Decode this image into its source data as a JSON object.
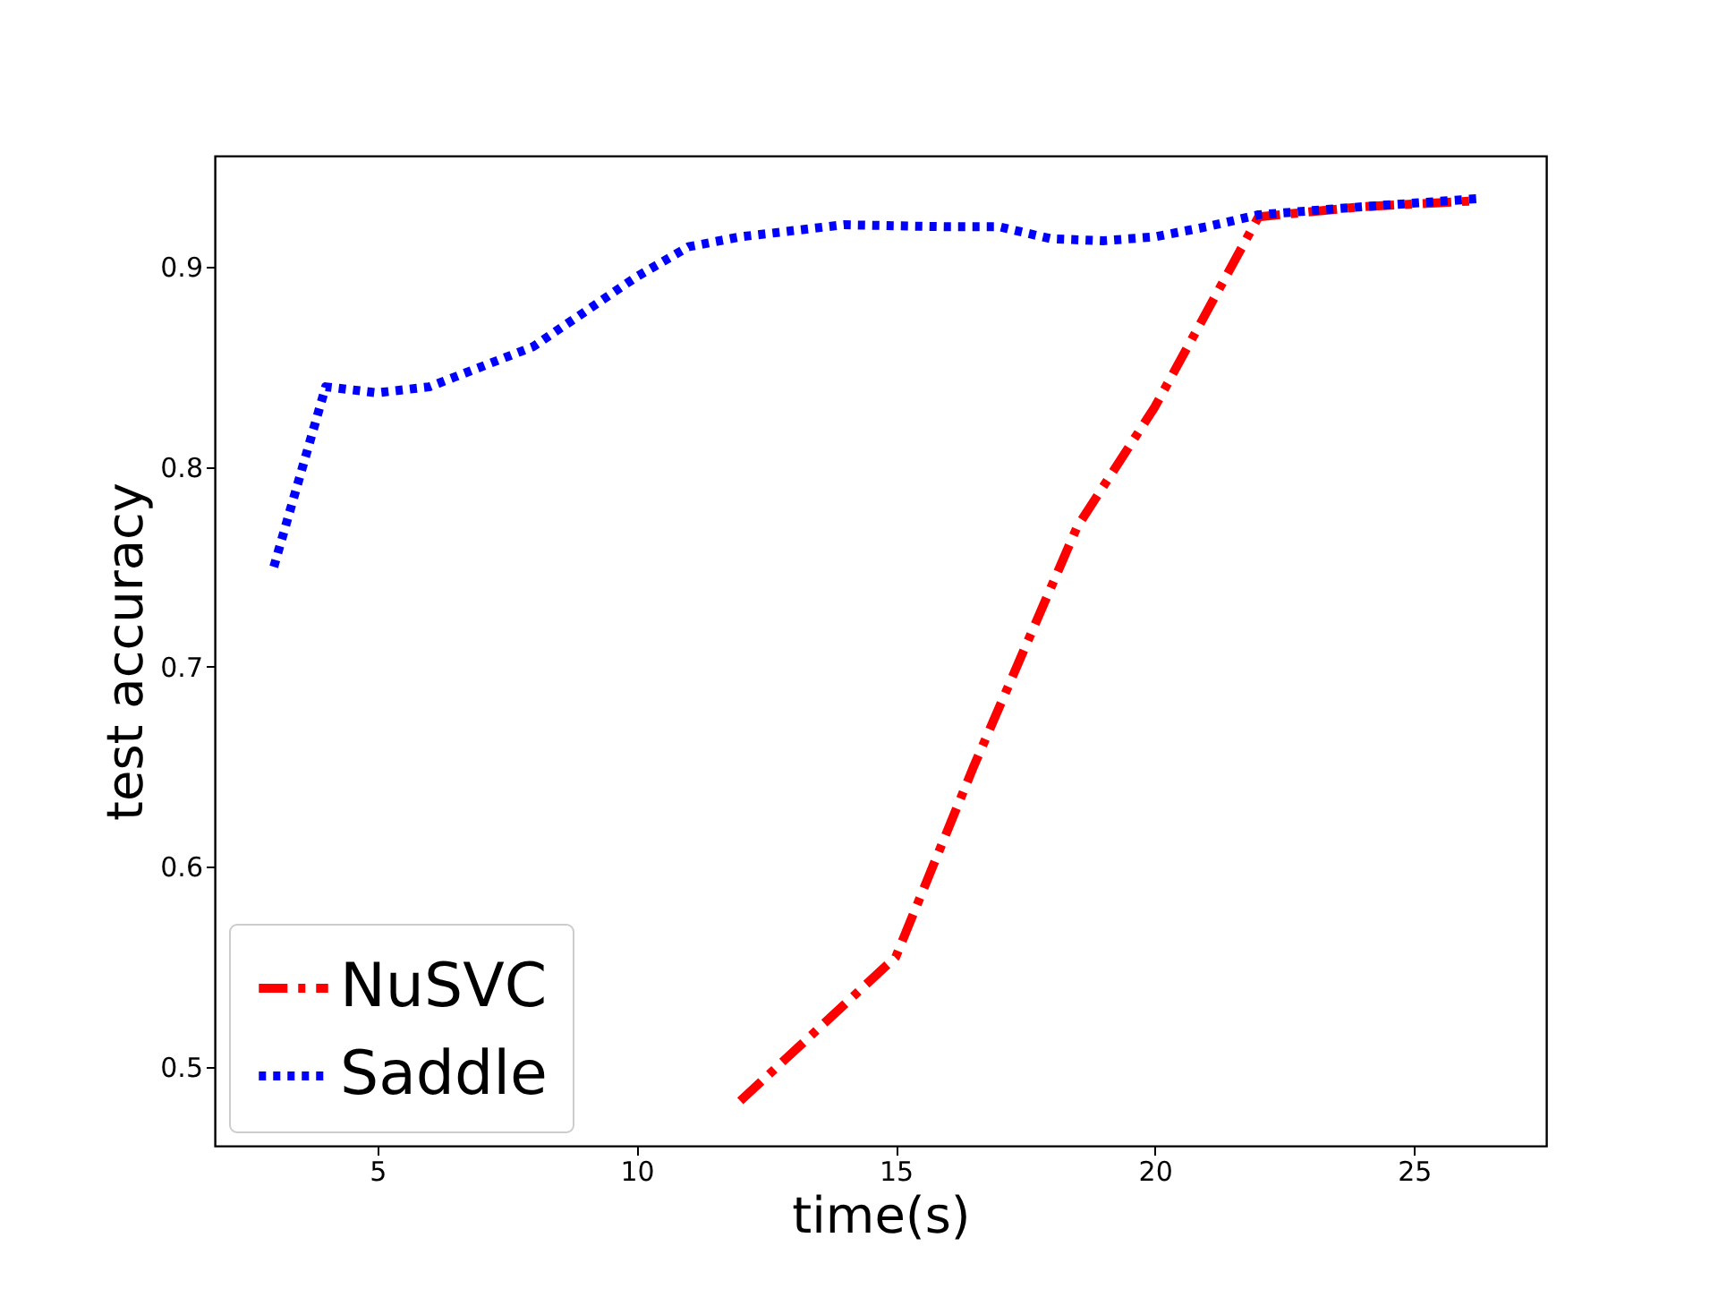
{
  "chart_data": {
    "type": "line",
    "xlabel": "time(s)",
    "ylabel": "test accuracy",
    "xlim": [
      1.86,
      27.55
    ],
    "ylim": [
      0.4606,
      0.9555
    ],
    "xticks": [
      5,
      10,
      15,
      20,
      25
    ],
    "yticks": [
      0.5,
      0.6,
      0.7,
      0.8,
      0.9
    ],
    "grid": false,
    "legend": "bottom left",
    "series": [
      {
        "name": "NuSVC",
        "color": "#ff0000",
        "line_style": "dashed",
        "x": [
          12,
          15,
          16.5,
          18.5,
          20,
          22,
          24,
          26.2
        ],
        "values": [
          0.483,
          0.555,
          0.65,
          0.77,
          0.83,
          0.925,
          0.93,
          0.933
        ]
      },
      {
        "name": "Saddle",
        "color": "#0000ff",
        "line_style": "dotted",
        "x": [
          3,
          4,
          5,
          6,
          8,
          10,
          11,
          12,
          14,
          16,
          17,
          18,
          19,
          20,
          21,
          22,
          24,
          26.2
        ],
        "values": [
          0.75,
          0.84,
          0.837,
          0.84,
          0.86,
          0.895,
          0.91,
          0.915,
          0.921,
          0.92,
          0.92,
          0.914,
          0.913,
          0.915,
          0.92,
          0.926,
          0.93,
          0.934
        ]
      }
    ]
  }
}
